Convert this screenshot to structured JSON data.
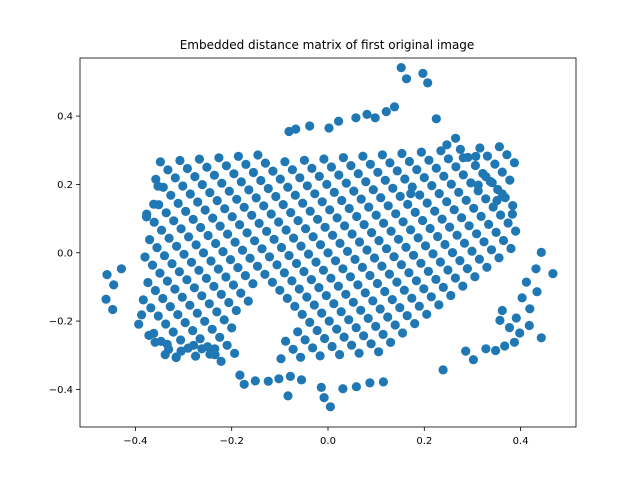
{
  "chart_data": {
    "type": "scatter",
    "title": "Embedded distance matrix of first original image",
    "xlabel": "",
    "ylabel": "",
    "xlim": [
      -0.515,
      0.515
    ],
    "ylim": [
      -0.51,
      0.57
    ],
    "x_ticks": [
      -0.4,
      -0.2,
      0.0,
      0.2,
      0.4
    ],
    "x_tick_labels": [
      "−0.4",
      "−0.2",
      "0.0",
      "0.2",
      "0.4"
    ],
    "y_ticks": [
      -0.4,
      -0.2,
      0.0,
      0.2,
      0.4
    ],
    "y_tick_labels": [
      "−0.4",
      "−0.2",
      "0.0",
      "0.2",
      "0.4"
    ],
    "grid": false,
    "marker_color": "#1f77b4",
    "lattice": {
      "origin": [
        -0.455,
        -0.095
      ],
      "u": [
        0.025,
        0.0275
      ],
      "v": [
        0.0155,
        -0.0235
      ],
      "i_range": [
        0,
        32
      ],
      "j_range": [
        -10,
        20
      ],
      "x_slope": 0.0675,
      "top_edge": [
        0.015,
        0.19
      ],
      "bottom_edge": [
        -0.025,
        -0.165
      ],
      "x_bounds": [
        -0.385,
        0.39
      ],
      "left_extra": {
        "x_max": -0.365,
        "y_range": [
          -0.2,
          0.12
        ]
      },
      "hole": {
        "x_range": [
          -0.2,
          -0.07
        ],
        "y_range": [
          -0.34,
          -0.1
        ]
      }
    },
    "points": [
      [
        0.152,
        0.542
      ],
      [
        0.163,
        0.509
      ],
      [
        0.197,
        0.525
      ],
      [
        0.207,
        0.497
      ],
      [
        0.225,
        0.392
      ],
      [
        0.172,
        0.173
      ],
      [
        0.383,
        0.113
      ],
      [
        0.281,
        0.278
      ],
      [
        0.307,
        0.282
      ],
      [
        0.443,
        0.001
      ],
      [
        0.467,
        -0.061
      ],
      [
        0.434,
        -0.114
      ],
      [
        0.443,
        -0.249
      ],
      [
        0.239,
        -0.343
      ],
      [
        -0.459,
        -0.064
      ],
      [
        -0.429,
        -0.047
      ],
      [
        -0.445,
        -0.094
      ],
      [
        -0.461,
        -0.136
      ],
      [
        -0.447,
        -0.166
      ],
      [
        -0.083,
        -0.419
      ],
      [
        0.005,
        -0.451
      ],
      [
        -0.008,
        -0.424
      ],
      [
        -0.014,
        -0.394
      ],
      [
        0.031,
        -0.398
      ],
      [
        0.059,
        -0.392
      ],
      [
        0.087,
        -0.381
      ],
      [
        0.115,
        -0.378
      ],
      [
        -0.124,
        -0.376
      ],
      [
        -0.151,
        -0.375
      ],
      [
        -0.174,
        -0.385
      ],
      [
        -0.183,
        -0.358
      ],
      [
        0.328,
        -0.281
      ],
      [
        0.286,
        -0.288
      ],
      [
        0.302,
        -0.313
      ],
      [
        0.348,
        -0.286
      ],
      [
        0.367,
        -0.273
      ],
      [
        0.387,
        -0.262
      ],
      [
        0.398,
        -0.235
      ],
      [
        0.418,
        -0.213
      ],
      [
        0.391,
        -0.191
      ],
      [
        0.377,
        -0.219
      ],
      [
        0.362,
        -0.169
      ],
      [
        0.357,
        -0.198
      ],
      [
        0.412,
        -0.086
      ],
      [
        0.403,
        -0.132
      ],
      [
        0.419,
        -0.164
      ],
      [
        0.432,
        -0.047
      ],
      [
        0.121,
        0.413
      ],
      [
        0.138,
        0.427
      ],
      [
        0.098,
        0.395
      ],
      [
        -0.377,
        0.105
      ],
      [
        -0.362,
        0.142
      ],
      [
        -0.353,
        0.195
      ],
      [
        0.022,
        0.385
      ],
      [
        0.058,
        0.395
      ],
      [
        0.081,
        0.405
      ],
      [
        0.002,
        0.365
      ],
      [
        -0.038,
        0.371
      ],
      [
        -0.067,
        0.362
      ],
      [
        -0.081,
        0.355
      ],
      [
        0.265,
        0.335
      ],
      [
        0.247,
        0.316
      ],
      [
        0.328,
        0.223
      ],
      [
        0.341,
        0.205
      ],
      [
        0.362,
        0.172
      ],
      [
        0.351,
        0.153
      ],
      [
        0.312,
        0.198
      ],
      [
        -0.078,
        -0.362
      ],
      [
        -0.055,
        -0.372
      ],
      [
        -0.102,
        -0.369
      ],
      [
        -0.222,
        -0.318
      ],
      [
        -0.235,
        -0.281
      ],
      [
        -0.245,
        -0.297
      ],
      [
        -0.262,
        -0.281
      ],
      [
        -0.279,
        -0.271
      ],
      [
        -0.305,
        -0.288
      ],
      [
        -0.315,
        -0.305
      ],
      [
        -0.334,
        -0.268
      ],
      [
        -0.338,
        -0.298
      ],
      [
        -0.359,
        -0.262
      ],
      [
        -0.372,
        -0.242
      ],
      [
        -0.393,
        -0.209
      ],
      [
        -0.387,
        -0.182
      ]
    ]
  }
}
